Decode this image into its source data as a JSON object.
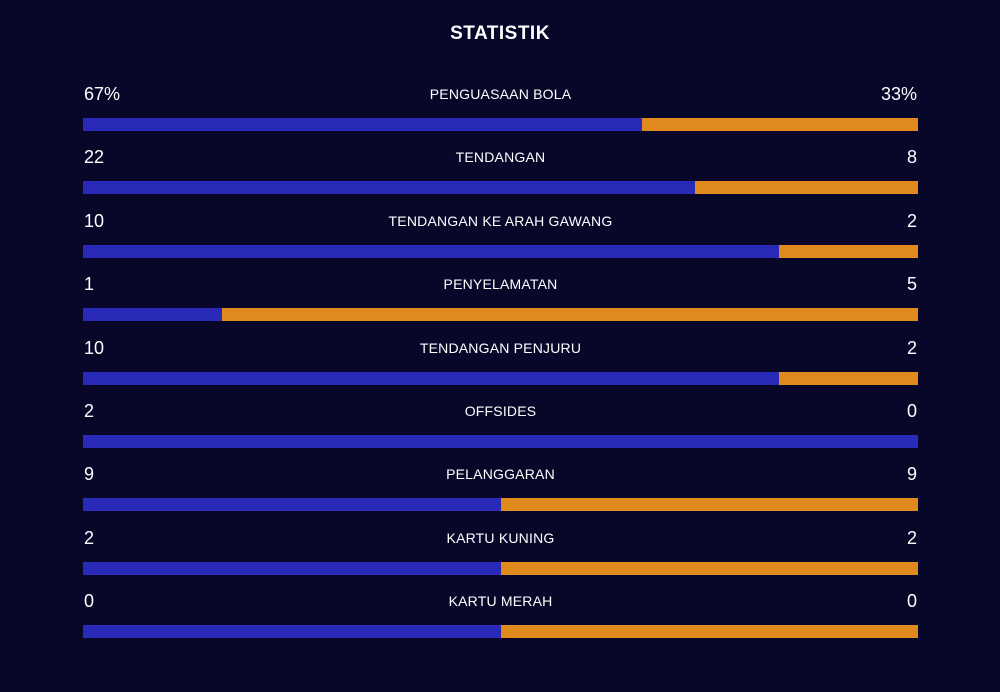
{
  "title": "STATISTIK",
  "colors": {
    "background": "#08072a",
    "home_bar": "#2a2ab8",
    "away_bar": "#e08a1e"
  },
  "stats": [
    {
      "label": "PENGUASAAN BOLA",
      "home": "67%",
      "away": "33%",
      "home_share": 0.67
    },
    {
      "label": "TENDANGAN",
      "home": "22",
      "away": "8",
      "home_share": 0.733
    },
    {
      "label": "TENDANGAN KE ARAH GAWANG",
      "home": "10",
      "away": "2",
      "home_share": 0.833
    },
    {
      "label": "PENYELAMATAN",
      "home": "1",
      "away": "5",
      "home_share": 0.167
    },
    {
      "label": "TENDANGAN PENJURU",
      "home": "10",
      "away": "2",
      "home_share": 0.833
    },
    {
      "label": "OFFSIDES",
      "home": "2",
      "away": "0",
      "home_share": 1.0
    },
    {
      "label": "PELANGGARAN",
      "home": "9",
      "away": "9",
      "home_share": 0.5
    },
    {
      "label": "KARTU KUNING",
      "home": "2",
      "away": "2",
      "home_share": 0.5
    },
    {
      "label": "KARTU MERAH",
      "home": "0",
      "away": "0",
      "home_share": 0.5
    }
  ]
}
